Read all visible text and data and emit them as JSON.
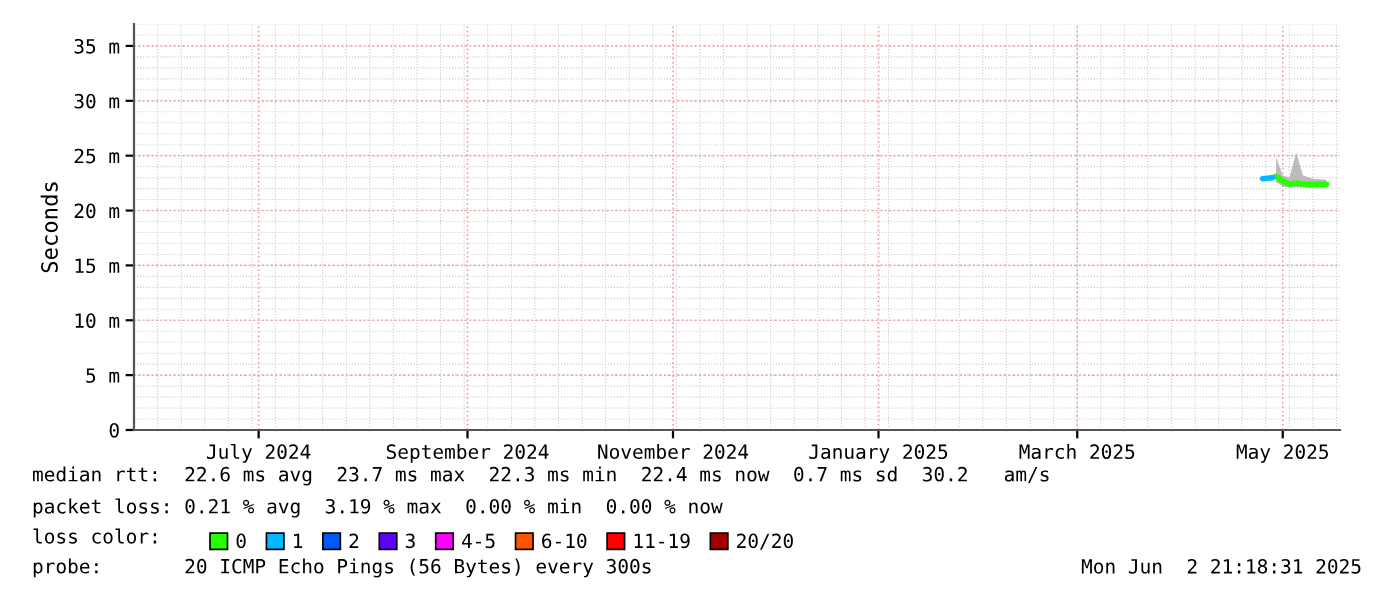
{
  "chart_data": {
    "type": "line",
    "ylabel": "Seconds",
    "xlim": [
      "2024-05-25",
      "2025-05-18"
    ],
    "xticks": [
      {
        "value": "2024-07-01",
        "label": "July 2024"
      },
      {
        "value": "2024-09-01",
        "label": "September 2024"
      },
      {
        "value": "2024-11-01",
        "label": "November 2024"
      },
      {
        "value": "2025-01-01",
        "label": "January 2025"
      },
      {
        "value": "2025-03-01",
        "label": "March 2025"
      },
      {
        "value": "2025-05-01",
        "label": "May 2025"
      }
    ],
    "ylim": [
      0,
      37
    ],
    "yticks": [
      0,
      {
        "value": 5,
        "label": "5 m"
      },
      {
        "value": 10,
        "label": "10 m"
      },
      {
        "value": 15,
        "label": "15 m"
      },
      {
        "value": 20,
        "label": "20 m"
      },
      {
        "value": 25,
        "label": "25 m"
      },
      {
        "value": 30,
        "label": "30 m"
      },
      {
        "value": 35,
        "label": "35 m"
      }
    ],
    "grid": true,
    "legend": "bottom",
    "legend_title": "loss color:",
    "line_style": "solid",
    "marker": "none",
    "series": [
      {
        "name": "0",
        "color": "#26ff00",
        "x": [
          "2025-04-29",
          "2025-05-01",
          "2025-05-03",
          "2025-05-05",
          "2025-05-07",
          "2025-05-10",
          "2025-05-14"
        ],
        "values": [
          23.1,
          22.7,
          22.4,
          22.5,
          22.4,
          22.4,
          22.4
        ],
        "lower": [
          22.6,
          22.2,
          22.1,
          22.1,
          22.1,
          22.1,
          22.1
        ],
        "upper": [
          24.9,
          23.2,
          23.0,
          25.3,
          23.2,
          22.9,
          22.8
        ]
      },
      {
        "name": "1",
        "color": "#00b8ff",
        "x": [
          "2025-04-25",
          "2025-04-28"
        ],
        "values": [
          22.9,
          23.0
        ]
      },
      {
        "name": "2",
        "color": "#0059ff"
      },
      {
        "name": "3",
        "color": "#5e00ff"
      },
      {
        "name": "4-5",
        "color": "#ff00ff"
      },
      {
        "name": "6-10",
        "color": "#ff5500"
      },
      {
        "name": "11-19",
        "color": "#ff0000"
      },
      {
        "name": "20/20",
        "color": "#a10000"
      }
    ],
    "annotations": [
      "median rtt:  22.6 ms avg  23.7 ms max  22.3 ms min  22.4 ms now  0.7 ms sd  30.2   am/s",
      "packet loss: 0.21 % avg  3.19 % max  0.00 % min  0.00 % now",
      "probe:       20 ICMP Echo Pings (56 Bytes) every 300s",
      "Mon Jun  2 21:18:31 2025"
    ]
  }
}
